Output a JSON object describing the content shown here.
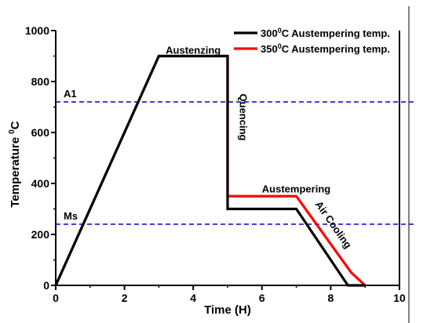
{
  "chart_data": {
    "type": "line",
    "title": "",
    "xlabel": "Time (H)",
    "ylabel": "Temperature",
    "ylabel_sup": "0",
    "ylabel_unit": "C",
    "xlim": [
      0,
      10
    ],
    "ylim": [
      0,
      1000
    ],
    "xticks": [
      "0",
      "2",
      "4",
      "6",
      "8",
      "10"
    ],
    "yticks": [
      "0",
      "200",
      "400",
      "600",
      "800",
      "1000"
    ],
    "grid": false,
    "legend_position": "top-right",
    "series": [
      {
        "name_prefix": "300",
        "name_sup": "0",
        "name_suffix": "C Austempering temp.",
        "color": "#000000",
        "x": [
          0,
          3,
          5,
          5,
          7,
          8.5,
          9
        ],
        "y": [
          0,
          900,
          900,
          300,
          300,
          0,
          0
        ]
      },
      {
        "name_prefix": "350",
        "name_sup": "0",
        "name_suffix": "C Austempering temp.",
        "color": "#ff0000",
        "x": [
          0,
          3,
          5,
          5,
          7,
          8.6,
          9
        ],
        "y": [
          0,
          900,
          900,
          350,
          350,
          50,
          0
        ]
      }
    ],
    "reference_lines": [
      {
        "label": "A1",
        "y": 720,
        "color": "#0000cc"
      },
      {
        "label": "Ms",
        "y": 240,
        "color": "#0000cc"
      }
    ],
    "annotations": [
      {
        "text": "Austenzing",
        "x": 4.0,
        "y": 910,
        "rotation": 0
      },
      {
        "text": "Quencing",
        "x": 5.35,
        "y": 660,
        "rotation": 90
      },
      {
        "text": "Austempering",
        "x": 6.0,
        "y": 365,
        "rotation": 0
      },
      {
        "text": "Air Cooling",
        "x": 8.0,
        "y": 230,
        "rotation": 55
      }
    ]
  }
}
